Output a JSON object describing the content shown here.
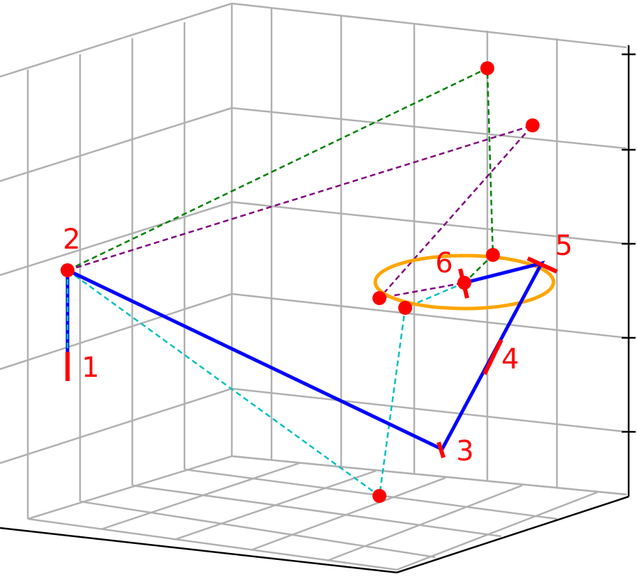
{
  "labels": [
    "1",
    "2",
    "3",
    "4",
    "5",
    "6"
  ]
}
